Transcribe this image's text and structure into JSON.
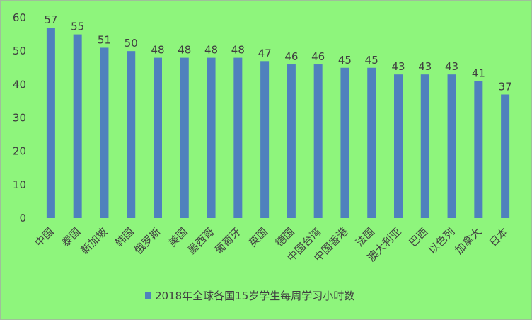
{
  "chart_data": {
    "type": "bar",
    "categories": [
      "中国",
      "泰国",
      "新加坡",
      "韩国",
      "俄罗斯",
      "美国",
      "墨西哥",
      "葡萄牙",
      "英国",
      "德国",
      "中国台湾",
      "中国香港",
      "法国",
      "澳大利亚",
      "巴西",
      "以色列",
      "加拿大",
      "日本"
    ],
    "series": [
      {
        "name": "2018年全球各国15岁学生每周学习小时数",
        "values": [
          57,
          55,
          51,
          50,
          48,
          48,
          48,
          48,
          47,
          46,
          46,
          45,
          45,
          43,
          43,
          43,
          41,
          37
        ],
        "color": "#4f81bd"
      }
    ],
    "ylim": [
      0,
      60
    ],
    "yticks": [
      0,
      10,
      20,
      30,
      40,
      50,
      60
    ],
    "grid": false,
    "legend": "bottom",
    "data_labels": true,
    "background": "#8ef57c"
  }
}
